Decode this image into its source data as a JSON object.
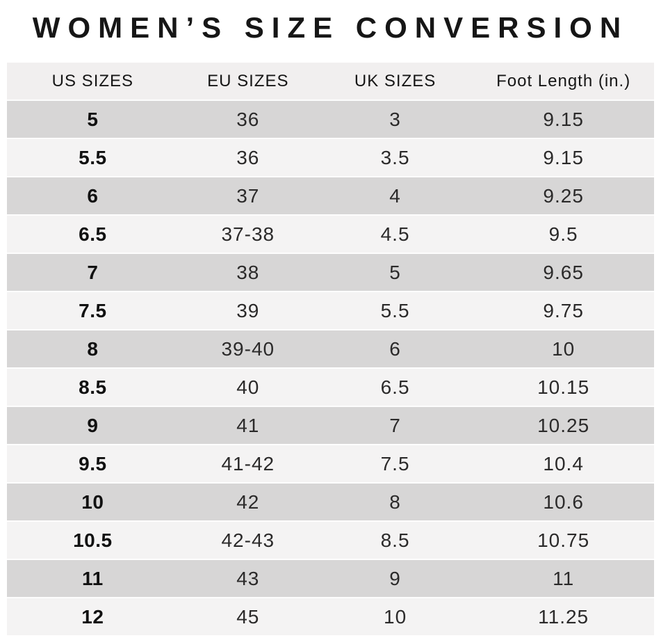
{
  "title": "WOMEN’S SIZE CONVERSION",
  "chart_data": {
    "type": "table",
    "title": "WOMEN’S SIZE CONVERSION",
    "columns": [
      "US SIZES",
      "EU SIZES",
      "UK SIZES",
      "Foot Length (in.)"
    ],
    "rows": [
      [
        "5",
        "36",
        "3",
        "9.15"
      ],
      [
        "5.5",
        "36",
        "3.5",
        "9.15"
      ],
      [
        "6",
        "37",
        "4",
        "9.25"
      ],
      [
        "6.5",
        "37-38",
        "4.5",
        "9.5"
      ],
      [
        "7",
        "38",
        "5",
        "9.65"
      ],
      [
        "7.5",
        "39",
        "5.5",
        "9.75"
      ],
      [
        "8",
        "39-40",
        "6",
        "10"
      ],
      [
        "8.5",
        "40",
        "6.5",
        "10.15"
      ],
      [
        "9",
        "41",
        "7",
        "10.25"
      ],
      [
        "9.5",
        "41-42",
        "7.5",
        "10.4"
      ],
      [
        "10",
        "42",
        "8",
        "10.6"
      ],
      [
        "10.5",
        "42-43",
        "8.5",
        "10.75"
      ],
      [
        "11",
        "43",
        "9",
        "11"
      ],
      [
        "12",
        "45",
        "10",
        "11.25"
      ]
    ],
    "layout": {
      "row_striping": "alternating starting dark",
      "first_column_bold": true
    }
  },
  "colors": {
    "row_dark": "#d7d6d6",
    "row_light": "#f4f3f3",
    "header_bg": "#f1efef",
    "separator": "#fdfdfd",
    "title_text": "#161616",
    "data_text": "#2b2a2a"
  }
}
